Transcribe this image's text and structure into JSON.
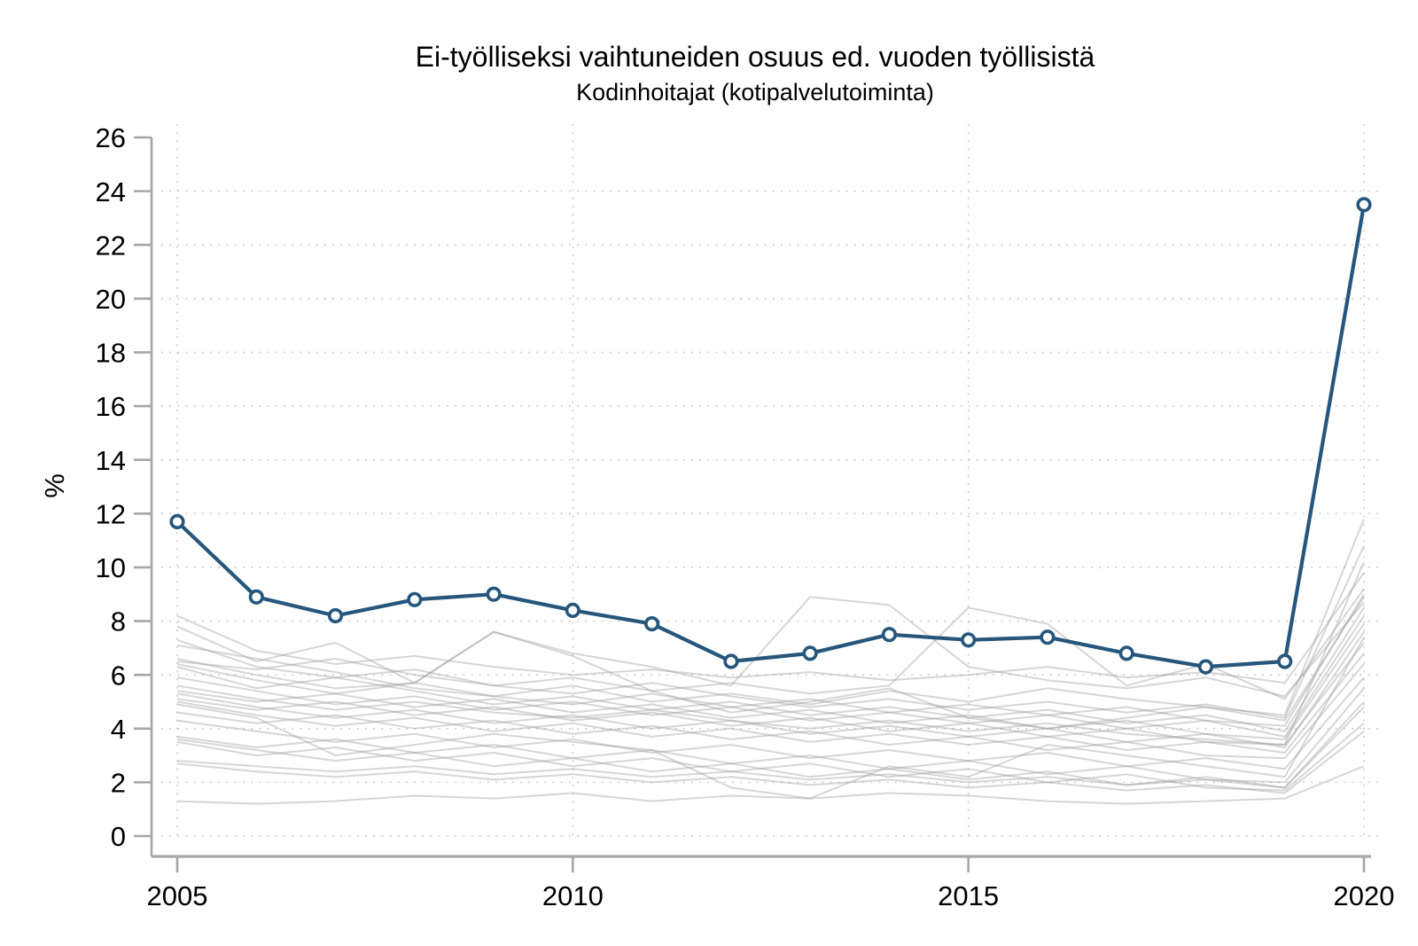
{
  "header": {
    "title": "Ei-työlliseksi vaihtuneiden osuus ed. vuoden työllisistä",
    "subtitle": "Kodinhoitajat (kotipalvelutoiminta)"
  },
  "colors": {
    "highlight": "#26567C",
    "background_line": "#9e9e9e",
    "axis": "#a6a6a6",
    "grid": "#9e9e9e"
  },
  "chart_data": {
    "type": "line",
    "title": "Ei-työlliseksi vaihtuneiden osuus ed. vuoden työllisistä",
    "subtitle": "Kodinhoitajat (kotipalvelutoiminta)",
    "xlabel": "",
    "ylabel": "%",
    "x": [
      2005,
      2006,
      2007,
      2008,
      2009,
      2010,
      2011,
      2012,
      2013,
      2014,
      2015,
      2016,
      2017,
      2018,
      2019,
      2020
    ],
    "xticks": [
      2005,
      2010,
      2015,
      2020
    ],
    "yticks": [
      0,
      2,
      4,
      6,
      8,
      10,
      12,
      14,
      16,
      18,
      20,
      22,
      24,
      26
    ],
    "xlim": [
      2005,
      2020
    ],
    "ylim": [
      0,
      26
    ],
    "grid": "dotted horizontal at every y tick (0-24) and vertical at labeled years",
    "legend_position": "none",
    "series": [
      {
        "name": "Kodinhoitajat (kotipalvelutoiminta)",
        "role": "highlight",
        "color": "#26567C",
        "marker": "open-circle",
        "values": [
          11.7,
          8.9,
          8.2,
          8.8,
          9.0,
          8.4,
          7.9,
          6.5,
          6.8,
          7.5,
          7.3,
          7.4,
          6.8,
          6.3,
          6.5,
          23.5
        ]
      }
    ],
    "background_series_note": "unlabeled light-gray comparison occupations, values estimated from gridlines",
    "background_series": [
      [
        8.2,
        6.9,
        6.4,
        6.7,
        6.3,
        6.0,
        6.2,
        5.9,
        6.1,
        5.8,
        6.0,
        6.3,
        5.9,
        6.1,
        5.7,
        9.8
      ],
      [
        7.8,
        6.5,
        7.2,
        5.7,
        7.6,
        6.8,
        6.3,
        5.6,
        8.9,
        8.6,
        6.3,
        5.8,
        5.5,
        5.9,
        5.2,
        8.7
      ],
      [
        7.3,
        6.3,
        5.9,
        6.2,
        5.6,
        5.9,
        5.4,
        5.7,
        5.3,
        5.6,
        8.5,
        7.9,
        5.6,
        6.4,
        5.1,
        9.2
      ],
      [
        7.1,
        6.6,
        6.1,
        5.5,
        5.2,
        5.6,
        5.0,
        5.3,
        4.9,
        5.4,
        5.0,
        5.5,
        5.1,
        4.8,
        4.5,
        11.8
      ],
      [
        6.6,
        6.0,
        5.5,
        5.7,
        7.6,
        6.7,
        5.4,
        4.6,
        5.0,
        5.5,
        4.4,
        4.0,
        4.4,
        4.8,
        4.3,
        8.9
      ],
      [
        6.5,
        6.2,
        6.6,
        6.0,
        5.6,
        5.3,
        5.7,
        5.2,
        4.8,
        5.1,
        4.7,
        5.0,
        4.6,
        4.9,
        4.4,
        10.8
      ],
      [
        6.4,
        5.8,
        5.3,
        5.7,
        5.2,
        4.9,
        5.3,
        4.8,
        5.1,
        4.6,
        4.9,
        4.5,
        4.8,
        4.3,
        4.1,
        9.0
      ],
      [
        6.3,
        5.5,
        5.9,
        5.4,
        4.9,
        5.2,
        4.7,
        5.0,
        4.5,
        4.8,
        4.4,
        4.7,
        4.2,
        4.5,
        3.9,
        8.5
      ],
      [
        5.9,
        5.4,
        4.9,
        5.2,
        4.7,
        5.0,
        4.5,
        4.8,
        4.3,
        4.6,
        4.2,
        4.5,
        4.0,
        4.3,
        3.7,
        8.2
      ],
      [
        5.6,
        5.1,
        4.7,
        5.0,
        4.6,
        4.4,
        4.7,
        4.3,
        4.0,
        4.3,
        3.9,
        4.2,
        3.8,
        3.6,
        3.4,
        10.2
      ],
      [
        5.4,
        5.0,
        5.3,
        4.8,
        5.1,
        4.6,
        4.9,
        4.4,
        4.7,
        4.2,
        4.5,
        4.0,
        4.3,
        3.8,
        3.6,
        7.9
      ],
      [
        5.3,
        4.8,
        4.4,
        4.7,
        4.2,
        4.5,
        4.0,
        4.3,
        3.8,
        4.1,
        3.7,
        4.0,
        3.5,
        3.8,
        3.3,
        7.6
      ],
      [
        5.1,
        4.7,
        5.0,
        4.5,
        4.8,
        4.3,
        4.6,
        4.1,
        4.4,
        3.9,
        4.2,
        3.7,
        4.0,
        3.5,
        3.4,
        7.2
      ],
      [
        5.0,
        4.5,
        4.1,
        4.4,
        3.9,
        4.2,
        3.7,
        4.0,
        3.5,
        3.8,
        3.4,
        3.7,
        3.2,
        3.5,
        3.1,
        6.8
      ],
      [
        4.9,
        4.4,
        3.0,
        3.4,
        3.8,
        3.5,
        3.2,
        1.8,
        1.4,
        2.6,
        2.2,
        3.4,
        3.0,
        2.6,
        2.2,
        7.4
      ],
      [
        4.6,
        4.2,
        4.5,
        4.0,
        4.3,
        3.8,
        4.1,
        3.6,
        3.9,
        3.4,
        3.7,
        3.2,
        3.5,
        3.0,
        2.9,
        6.4
      ],
      [
        4.3,
        3.9,
        3.5,
        3.8,
        3.3,
        3.6,
        3.1,
        3.4,
        2.9,
        3.2,
        2.8,
        3.1,
        2.6,
        2.9,
        2.5,
        5.9
      ],
      [
        3.7,
        3.3,
        3.6,
        3.1,
        3.4,
        2.9,
        3.2,
        2.7,
        3.0,
        2.5,
        2.8,
        2.3,
        2.6,
        2.1,
        2.0,
        5.5
      ],
      [
        3.6,
        3.2,
        2.8,
        3.1,
        2.6,
        2.9,
        2.4,
        2.7,
        2.2,
        2.5,
        2.1,
        2.4,
        1.9,
        2.2,
        1.8,
        5.0
      ],
      [
        3.5,
        3.0,
        3.3,
        2.8,
        3.1,
        2.6,
        2.9,
        2.4,
        2.7,
        2.2,
        2.5,
        2.0,
        2.3,
        1.8,
        1.7,
        4.2
      ],
      [
        2.8,
        2.6,
        2.4,
        2.6,
        2.3,
        2.5,
        2.2,
        2.4,
        2.1,
        2.3,
        2.0,
        2.2,
        1.9,
        2.1,
        1.8,
        4.8
      ],
      [
        2.7,
        2.4,
        2.2,
        2.4,
        2.1,
        2.3,
        2.0,
        2.2,
        1.9,
        2.1,
        1.8,
        2.0,
        1.7,
        1.9,
        1.6,
        3.9
      ],
      [
        1.3,
        1.2,
        1.3,
        1.5,
        1.4,
        1.6,
        1.3,
        1.5,
        1.4,
        1.6,
        1.5,
        1.3,
        1.2,
        1.3,
        1.4,
        2.6
      ]
    ]
  }
}
